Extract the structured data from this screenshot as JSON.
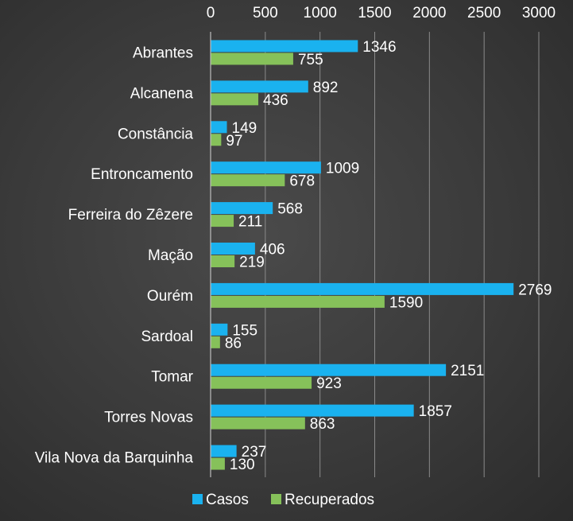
{
  "chart_data": {
    "type": "bar",
    "orientation": "horizontal",
    "title": "",
    "xlabel": "",
    "ylabel": "",
    "xlim": [
      0,
      3000
    ],
    "x_ticks": [
      0,
      500,
      1000,
      1500,
      2000,
      2500,
      3000
    ],
    "x_tick_labels": [
      "0",
      "500",
      "1000",
      "1500",
      "2000",
      "2500",
      "3000"
    ],
    "x_axis_position": "top",
    "grid": true,
    "legend_position": "bottom",
    "categories": [
      "Abrantes",
      "Alcanena",
      "Constância",
      "Entroncamento",
      "Ferreira do Zêzere",
      "Mação",
      "Ourém",
      "Sardoal",
      "Tomar",
      "Torres Novas",
      "Vila Nova da Barquinha"
    ],
    "series": [
      {
        "name": "Casos",
        "color": "#1ab2ef",
        "values": [
          1346,
          892,
          149,
          1009,
          568,
          406,
          2769,
          155,
          2151,
          1857,
          237
        ]
      },
      {
        "name": "Recuperados",
        "color": "#86c15a",
        "values": [
          755,
          436,
          97,
          678,
          211,
          219,
          1590,
          86,
          923,
          863,
          130
        ]
      }
    ]
  }
}
